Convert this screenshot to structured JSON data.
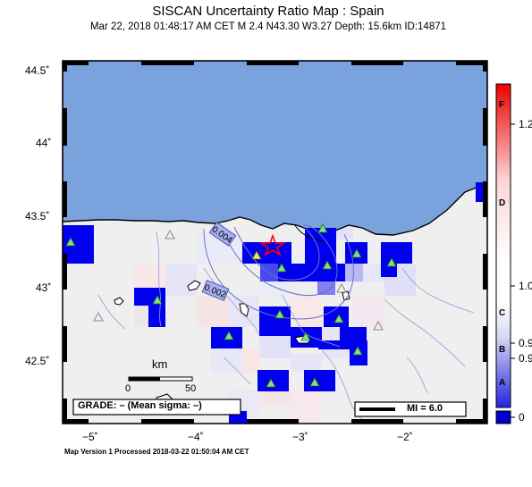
{
  "title": "SISCAN Uncertainty Ratio Map : Spain",
  "subtitle": "Mar 22, 2018 01:48:17 AM CET   M 2.4   N43.30 W3.27   Depth: 15.6km   ID:14871",
  "footer": "Map Version 1 Processed 2018-03-22 01:50:04 AM CET",
  "lat_labels": [
    "44.5˚",
    "44˚",
    "43.5˚",
    "43˚",
    "42.5˚"
  ],
  "lon_labels": [
    "−5˚",
    "−4˚",
    "−3˚",
    "−2˚"
  ],
  "scale": {
    "unit": "km",
    "tick_start": "0",
    "tick_end": "50"
  },
  "grade_text": "GRADE: – (Mean sigma: –)",
  "mi_text": "MI = 6.0",
  "contour_labels": [
    "0.004",
    "0.002"
  ],
  "colorbar": {
    "letters": [
      "F",
      "D",
      "C",
      "B",
      "A"
    ],
    "values": [
      "1.2",
      "1.0",
      "0.9",
      "0.9",
      "0"
    ]
  },
  "colors": {
    "sea": "#7aa2dc",
    "land": "#efefef",
    "cell_blue": "#0000ee",
    "epicenter": "#ff0000",
    "station": "#7fe27f"
  }
}
